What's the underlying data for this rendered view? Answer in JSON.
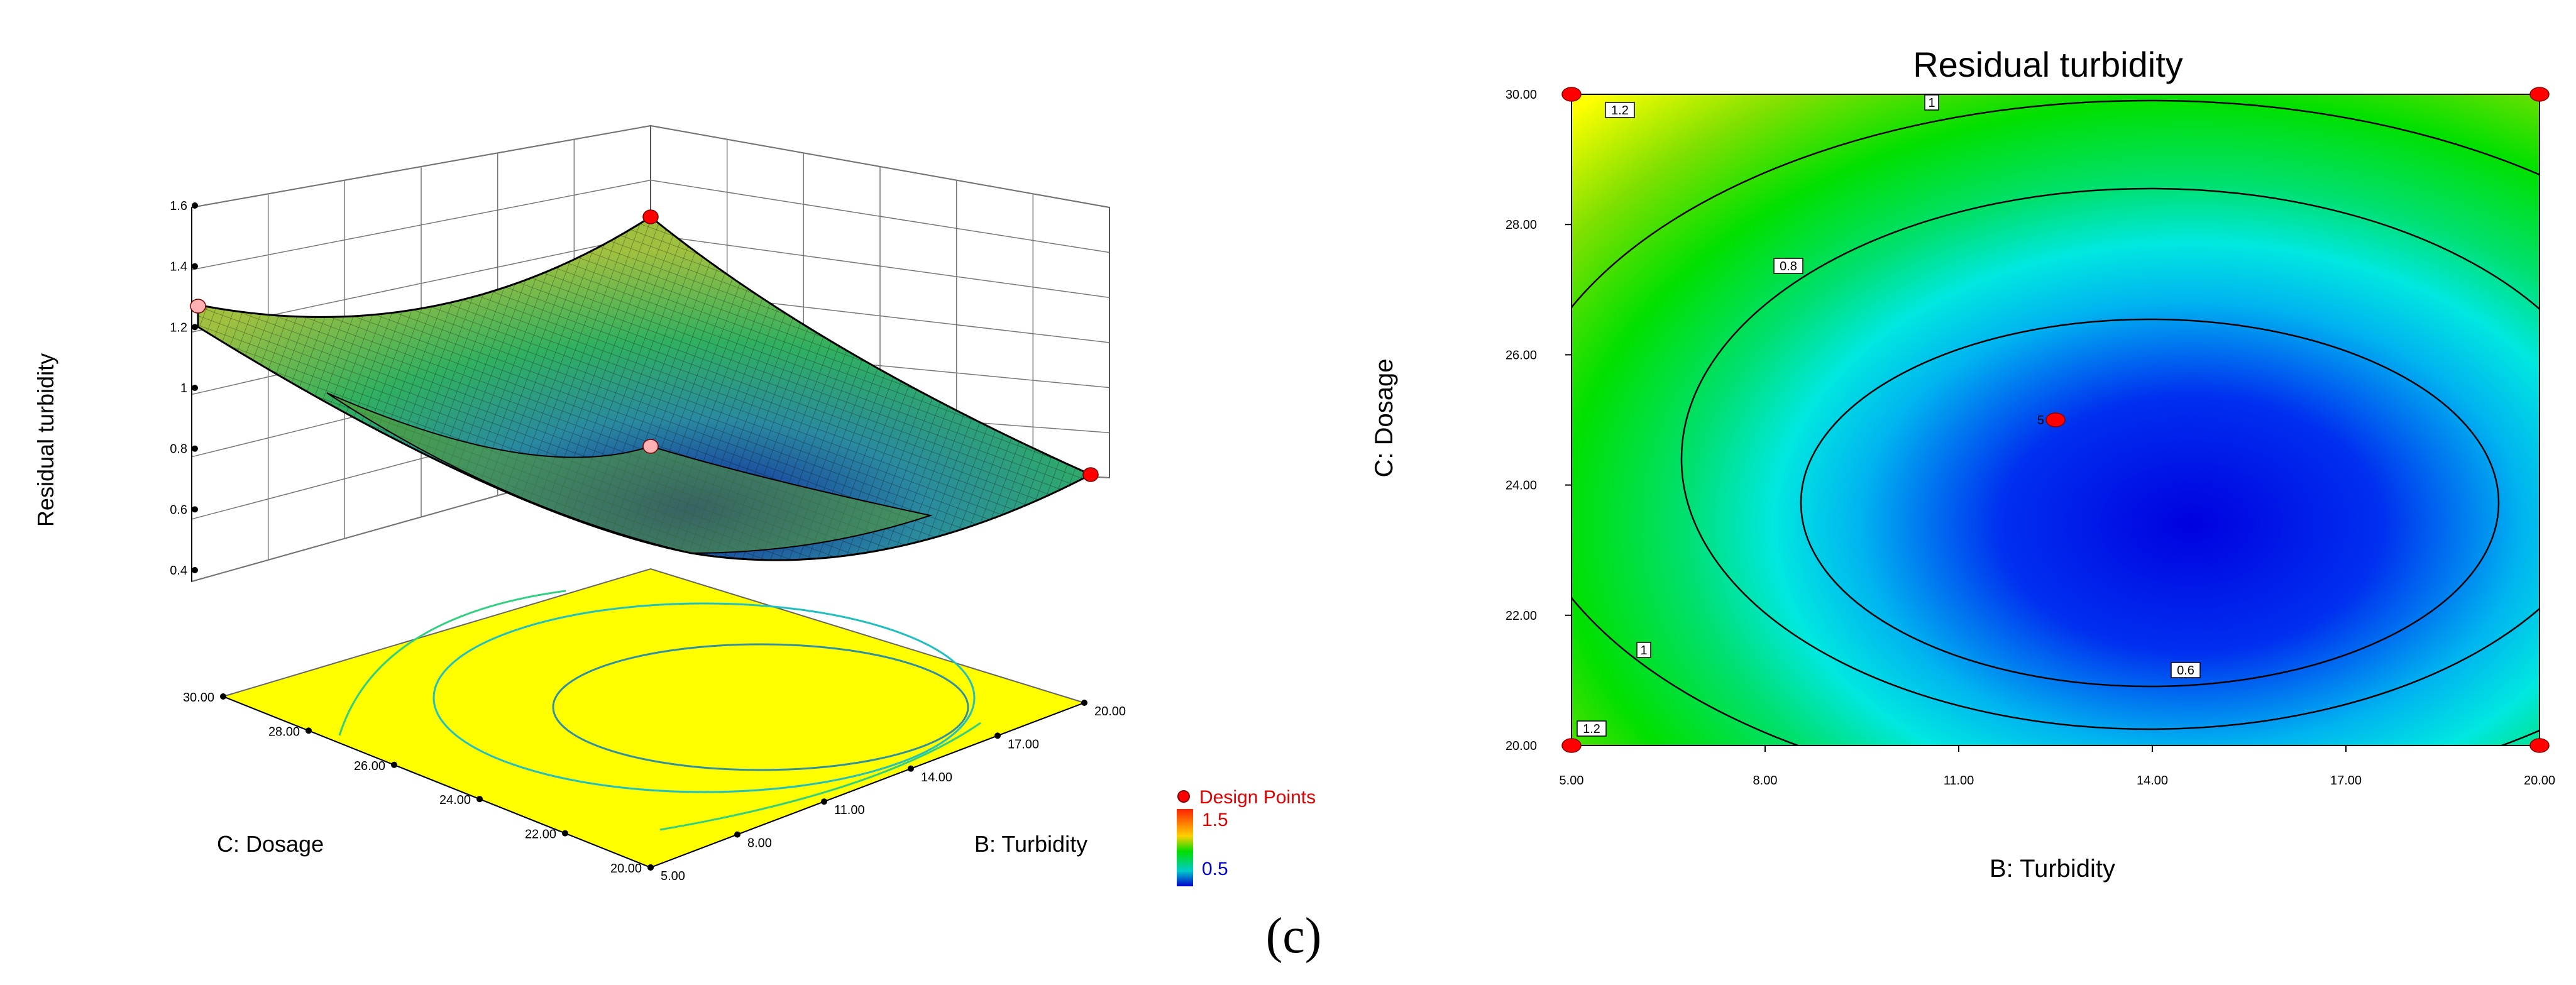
{
  "panel_label": "(c)",
  "colors": {
    "high": "#ff2a00",
    "mid": "#00dd00",
    "low": "#0000dd",
    "floor": "#ffff00",
    "point": "#ff0000"
  },
  "chart_data": [
    {
      "type": "surface3d",
      "title": "",
      "zlabel": "Residual turbidity",
      "xlabel": "B: Turbidity",
      "ylabel": "C: Dosage",
      "x_ticks": [
        "5.00",
        "8.00",
        "11.00",
        "14.00",
        "17.00",
        "20.00"
      ],
      "y_ticks": [
        "20.00",
        "22.00",
        "24.00",
        "26.00",
        "28.00",
        "30.00"
      ],
      "z_ticks": [
        "0.4",
        "0.6",
        "0.8",
        "1",
        "1.2",
        "1.4",
        "1.6"
      ],
      "xlim": [
        5,
        20
      ],
      "ylim": [
        20,
        30
      ],
      "zlim": [
        0.4,
        1.6
      ],
      "legend": {
        "title": "Design Points",
        "max_label": "1.5",
        "min_label": "0.5"
      },
      "corner_values": [
        {
          "B": 5,
          "C": 20,
          "z": 1.28
        },
        {
          "B": 20,
          "C": 20,
          "z": 0.98
        },
        {
          "B": 5,
          "C": 30,
          "z": 1.24
        },
        {
          "B": 20,
          "C": 30,
          "z": 1.31
        }
      ],
      "design_points": [
        {
          "B": 20,
          "C": 30,
          "z": 1.45
        },
        {
          "B": 20,
          "C": 20,
          "z": 1.0
        },
        {
          "B": 5,
          "C": 30,
          "z": 1.28
        },
        {
          "B": 5,
          "C": 20,
          "z": 1.2
        }
      ]
    },
    {
      "type": "contour",
      "title": "Residual turbidity",
      "xlabel": "B: Turbidity",
      "ylabel": "C: Dosage",
      "x_ticks": [
        "5.00",
        "8.00",
        "11.00",
        "14.00",
        "17.00",
        "20.00"
      ],
      "y_ticks": [
        "20.00",
        "22.00",
        "24.00",
        "26.00",
        "28.00",
        "30.00"
      ],
      "xlim": [
        5,
        20
      ],
      "ylim": [
        20,
        30
      ],
      "contour_levels": [
        {
          "value": 1.2,
          "label": "1.2"
        },
        {
          "value": 1.0,
          "label": "1"
        },
        {
          "value": 0.8,
          "label": "0.8"
        },
        {
          "value": 0.6,
          "label": "0.6"
        }
      ],
      "center_point": {
        "B": 12.5,
        "C": 25,
        "label": "5"
      },
      "design_points": [
        {
          "B": 5,
          "C": 20
        },
        {
          "B": 5,
          "C": 30
        },
        {
          "B": 20,
          "C": 20
        },
        {
          "B": 20,
          "C": 30
        },
        {
          "B": 12.5,
          "C": 25
        }
      ]
    }
  ]
}
